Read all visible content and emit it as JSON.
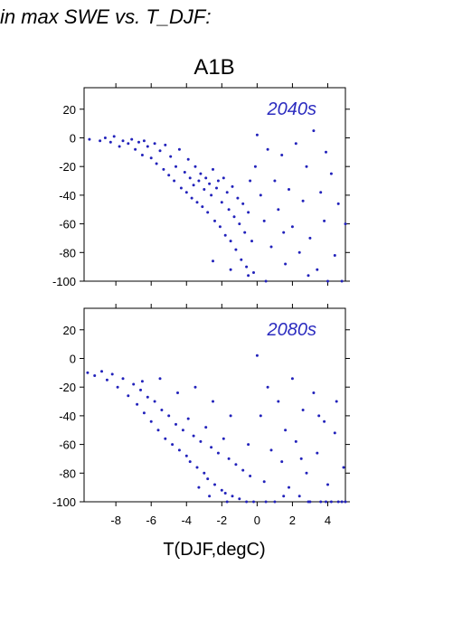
{
  "page": {
    "title": "in max SWE vs. T_DJF:"
  },
  "chart_data": [
    {
      "type": "scatter",
      "title": "A1B",
      "annotation": "2040s",
      "xlabel": "",
      "ylabel": "",
      "xlim": [
        -9.8,
        5
      ],
      "ylim": [
        -100,
        35
      ],
      "xticks": [
        -8,
        -6,
        -4,
        -2,
        0,
        2,
        4
      ],
      "yticks": [
        20,
        0,
        -20,
        -40,
        -60,
        -80,
        -100
      ],
      "grid": false,
      "color": "#2222bb",
      "points": [
        [
          -9.5,
          -1
        ],
        [
          -8.9,
          -2
        ],
        [
          -8.6,
          0
        ],
        [
          -8.3,
          -3
        ],
        [
          -8.1,
          1
        ],
        [
          -7.8,
          -6
        ],
        [
          -7.6,
          -2
        ],
        [
          -7.3,
          -4
        ],
        [
          -7.1,
          -1
        ],
        [
          -6.9,
          -8
        ],
        [
          -6.7,
          -3
        ],
        [
          -6.5,
          -12
        ],
        [
          -6.4,
          -2
        ],
        [
          -6.2,
          -6
        ],
        [
          -6.0,
          -14
        ],
        [
          -5.8,
          -4
        ],
        [
          -5.7,
          -18
        ],
        [
          -5.5,
          -9
        ],
        [
          -5.3,
          -22
        ],
        [
          -5.2,
          -5
        ],
        [
          -5.0,
          -26
        ],
        [
          -4.9,
          -13
        ],
        [
          -4.7,
          -30
        ],
        [
          -4.6,
          -20
        ],
        [
          -4.4,
          -8
        ],
        [
          -4.3,
          -35
        ],
        [
          -4.1,
          -24
        ],
        [
          -4.0,
          -38
        ],
        [
          -3.9,
          -15
        ],
        [
          -3.8,
          -28
        ],
        [
          -3.7,
          -42
        ],
        [
          -3.6,
          -33
        ],
        [
          -3.5,
          -20
        ],
        [
          -3.4,
          -45
        ],
        [
          -3.3,
          -30
        ],
        [
          -3.2,
          -25
        ],
        [
          -3.1,
          -48
        ],
        [
          -3.0,
          -36
        ],
        [
          -2.9,
          -28
        ],
        [
          -2.8,
          -52
        ],
        [
          -2.7,
          -32
        ],
        [
          -2.6,
          -40
        ],
        [
          -2.5,
          -22
        ],
        [
          -2.4,
          -58
        ],
        [
          -2.3,
          -35
        ],
        [
          -2.2,
          -30
        ],
        [
          -2.1,
          -62
        ],
        [
          -2.0,
          -45
        ],
        [
          -1.9,
          -28
        ],
        [
          -1.8,
          -68
        ],
        [
          -1.7,
          -38
        ],
        [
          -1.6,
          -50
        ],
        [
          -1.5,
          -72
        ],
        [
          -1.4,
          -34
        ],
        [
          -1.3,
          -55
        ],
        [
          -1.2,
          -78
        ],
        [
          -1.1,
          -42
        ],
        [
          -1.0,
          -60
        ],
        [
          -0.9,
          -85
        ],
        [
          -0.8,
          -46
        ],
        [
          -0.7,
          -66
        ],
        [
          -0.6,
          -90
        ],
        [
          -0.5,
          -52
        ],
        [
          -0.4,
          -30
        ],
        [
          -0.3,
          -72
        ],
        [
          -0.2,
          -94
        ],
        [
          -0.1,
          -20
        ],
        [
          0.0,
          2
        ],
        [
          0.2,
          -40
        ],
        [
          0.4,
          -58
        ],
        [
          0.6,
          -8
        ],
        [
          0.8,
          -76
        ],
        [
          1.0,
          -30
        ],
        [
          1.2,
          -50
        ],
        [
          1.4,
          -12
        ],
        [
          1.6,
          -88
        ],
        [
          1.8,
          -36
        ],
        [
          2.0,
          -62
        ],
        [
          2.2,
          -4
        ],
        [
          2.4,
          -80
        ],
        [
          2.6,
          -44
        ],
        [
          2.8,
          -20
        ],
        [
          3.0,
          -70
        ],
        [
          3.2,
          5
        ],
        [
          3.4,
          -92
        ],
        [
          3.6,
          -38
        ],
        [
          3.8,
          -58
        ],
        [
          4.0,
          -100
        ],
        [
          4.2,
          -25
        ],
        [
          4.4,
          -82
        ],
        [
          4.6,
          -46
        ],
        [
          4.8,
          -100
        ],
        [
          5.0,
          -60
        ],
        [
          3.9,
          -10
        ],
        [
          2.9,
          -96
        ],
        [
          1.5,
          -66
        ],
        [
          0.5,
          -100
        ],
        [
          -0.5,
          -96
        ],
        [
          -1.5,
          -92
        ],
        [
          -2.5,
          -86
        ]
      ]
    },
    {
      "type": "scatter",
      "title": "",
      "annotation": "2080s",
      "xlabel": "T(DJF,degC)",
      "ylabel": "",
      "xlim": [
        -9.8,
        5
      ],
      "ylim": [
        -100,
        35
      ],
      "xticks": [
        -8,
        -6,
        -4,
        -2,
        0,
        2,
        4
      ],
      "yticks": [
        20,
        0,
        -20,
        -40,
        -60,
        -80,
        -100
      ],
      "grid": false,
      "color": "#2222bb",
      "points": [
        [
          -9.6,
          -10
        ],
        [
          -9.2,
          -12
        ],
        [
          -8.8,
          -9
        ],
        [
          -8.5,
          -15
        ],
        [
          -8.2,
          -11
        ],
        [
          -7.9,
          -20
        ],
        [
          -7.6,
          -14
        ],
        [
          -7.3,
          -26
        ],
        [
          -7.0,
          -18
        ],
        [
          -6.8,
          -32
        ],
        [
          -6.6,
          -22
        ],
        [
          -6.4,
          -38
        ],
        [
          -6.2,
          -27
        ],
        [
          -6.0,
          -44
        ],
        [
          -5.8,
          -30
        ],
        [
          -5.6,
          -50
        ],
        [
          -5.4,
          -36
        ],
        [
          -5.2,
          -56
        ],
        [
          -5.0,
          -40
        ],
        [
          -4.8,
          -60
        ],
        [
          -4.6,
          -46
        ],
        [
          -4.4,
          -64
        ],
        [
          -4.2,
          -50
        ],
        [
          -4.0,
          -68
        ],
        [
          -3.9,
          -42
        ],
        [
          -3.8,
          -72
        ],
        [
          -3.6,
          -54
        ],
        [
          -3.4,
          -76
        ],
        [
          -3.2,
          -58
        ],
        [
          -3.0,
          -80
        ],
        [
          -2.9,
          -48
        ],
        [
          -2.8,
          -84
        ],
        [
          -2.6,
          -62
        ],
        [
          -2.4,
          -88
        ],
        [
          -2.2,
          -66
        ],
        [
          -2.0,
          -92
        ],
        [
          -1.9,
          -56
        ],
        [
          -1.8,
          -94
        ],
        [
          -1.6,
          -70
        ],
        [
          -1.4,
          -96
        ],
        [
          -1.2,
          -74
        ],
        [
          -1.0,
          -98
        ],
        [
          -0.8,
          -78
        ],
        [
          -0.6,
          -100
        ],
        [
          -0.4,
          -82
        ],
        [
          -0.2,
          -100
        ],
        [
          0.0,
          2
        ],
        [
          0.2,
          -40
        ],
        [
          0.4,
          -86
        ],
        [
          0.6,
          -20
        ],
        [
          0.8,
          -64
        ],
        [
          1.0,
          -100
        ],
        [
          1.2,
          -30
        ],
        [
          1.4,
          -72
        ],
        [
          1.6,
          -50
        ],
        [
          1.8,
          -90
        ],
        [
          2.0,
          -14
        ],
        [
          2.2,
          -58
        ],
        [
          2.4,
          -96
        ],
        [
          2.6,
          -36
        ],
        [
          2.8,
          -80
        ],
        [
          3.0,
          -100
        ],
        [
          3.2,
          -24
        ],
        [
          3.4,
          -66
        ],
        [
          3.6,
          -100
        ],
        [
          3.8,
          -44
        ],
        [
          4.0,
          -88
        ],
        [
          4.2,
          -100
        ],
        [
          4.4,
          -52
        ],
        [
          4.6,
          -100
        ],
        [
          4.8,
          -100
        ],
        [
          5.0,
          -100
        ],
        [
          4.9,
          -76
        ],
        [
          3.9,
          -100
        ],
        [
          2.9,
          -100
        ],
        [
          -3.5,
          -20
        ],
        [
          -4.5,
          -24
        ],
        [
          -5.5,
          -14
        ],
        [
          -6.5,
          -16
        ],
        [
          -2.5,
          -30
        ],
        [
          -1.5,
          -40
        ],
        [
          -0.5,
          -60
        ],
        [
          0.5,
          -100
        ],
        [
          1.5,
          -96
        ],
        [
          2.5,
          -70
        ],
        [
          3.5,
          -40
        ],
        [
          4.5,
          -30
        ],
        [
          -3.3,
          -90
        ],
        [
          -2.7,
          -96
        ],
        [
          -1.7,
          -100
        ]
      ]
    }
  ]
}
